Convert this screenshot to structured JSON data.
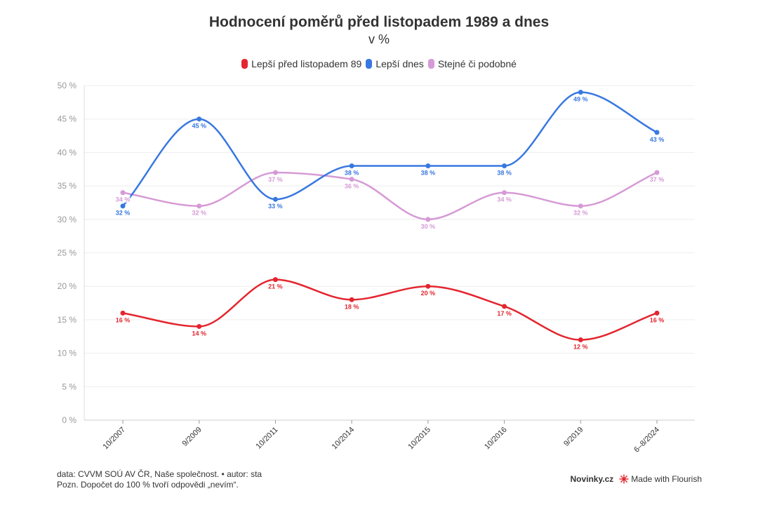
{
  "chart_data": {
    "type": "line",
    "title": "Hodnocení poměrů před listopadem 1989 a dnes",
    "subtitle": "v %",
    "categories": [
      "10/2007",
      "9/2009",
      "10/2011",
      "10/2014",
      "10/2015",
      "10/2016",
      "9/2019",
      "6–8/2024"
    ],
    "y_ticks": [
      "0 %",
      "5 %",
      "10 %",
      "15 %",
      "20 %",
      "25 %",
      "30 %",
      "35 %",
      "40 %",
      "45 %",
      "50 %"
    ],
    "ylim": [
      0,
      50
    ],
    "grid": true,
    "legend_position": "top-center",
    "series": [
      {
        "name": "Lepší před listopadem 89",
        "color": "#e3262f",
        "values": [
          16,
          14,
          21,
          18,
          20,
          17,
          12,
          16
        ],
        "labels": [
          "16 %",
          "14 %",
          "21 %",
          "18 %",
          "20 %",
          "17 %",
          "12 %",
          "16 %"
        ]
      },
      {
        "name": "Lepší dnes",
        "color": "#3878e0",
        "values": [
          32,
          45,
          33,
          38,
          38,
          38,
          49,
          43
        ],
        "labels": [
          "32 %",
          "45 %",
          "33 %",
          "38 %",
          "38 %",
          "38 %",
          "49 %",
          "43 %"
        ]
      },
      {
        "name": "Stejné či podobné",
        "color": "#d69ad6",
        "values": [
          34,
          32,
          37,
          36,
          30,
          34,
          32,
          37
        ],
        "labels": [
          "34 %",
          "32 %",
          "37 %",
          "36 %",
          "30 %",
          "34 %",
          "32 %",
          "37 %"
        ]
      }
    ]
  },
  "footer": {
    "source": "data: CVVM SOÚ AV ČR, Naše společnost. • autor: sta",
    "note": "Pozn. Dopočet do 100 % tvoří odpovědi „nevím“."
  },
  "branding": {
    "novinky": "Novinky.cz",
    "flourish": "Made with Flourish",
    "flourish_icon": "flourish-star-icon"
  }
}
